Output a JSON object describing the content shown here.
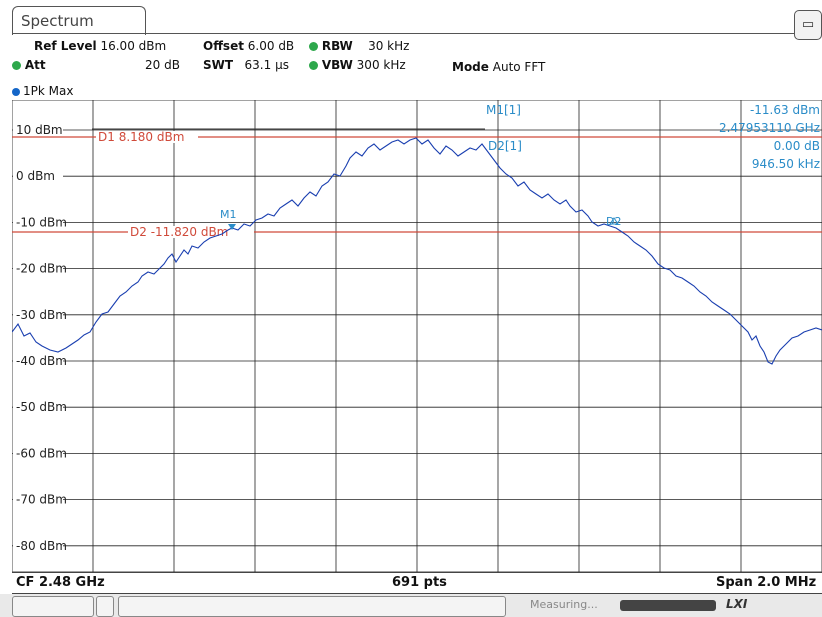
{
  "tab": {
    "label": "Spectrum"
  },
  "corner_icon": "display-icon",
  "settings": {
    "ref_level_label": "Ref Level",
    "ref_level_value": "16.00 dBm",
    "offset_label": "Offset",
    "offset_value": "6.00 dB",
    "rbw_label": "RBW",
    "rbw_value": "30 kHz",
    "att_label": "Att",
    "att_value": "20 dB",
    "swt_label": "SWT",
    "swt_value": "63.1 µs",
    "vbw_label": "VBW",
    "vbw_value": "300 kHz",
    "mode_label": "Mode",
    "mode_value": "Auto FFT"
  },
  "trace_label": "1Pk Max",
  "y_axis": {
    "ticks": [
      "10 dBm",
      "0 dBm",
      "-10 dBm",
      "-20 dBm",
      "-30 dBm",
      "-40 dBm",
      "-50 dBm",
      "-60 dBm",
      "-70 dBm",
      "-80 dBm"
    ]
  },
  "display_lines": {
    "d1_label": "D1  8.180 dBm",
    "d2_label": "D2  -11.820 dBm"
  },
  "markers": {
    "m1": "M1",
    "d2": "D2",
    "m1_readout_label": "M1[1]",
    "m1_level": "-11.63 dBm",
    "m1_freq": "2.47953110 GHz",
    "d2_readout_label": "D2[1]",
    "d2_level": "0.00 dB",
    "d2_freq": "946.50 kHz"
  },
  "footer": {
    "cf": "CF 2.48 GHz",
    "pts": "691 pts",
    "span": "Span 2.0 MHz"
  },
  "status": {
    "measuring": "Measuring...",
    "lxi": "LXI"
  },
  "colors": {
    "trace": "#1a3fb0",
    "display_line": "#d04a3a",
    "marker": "#2a8cc8",
    "grid": "#000000"
  }
}
